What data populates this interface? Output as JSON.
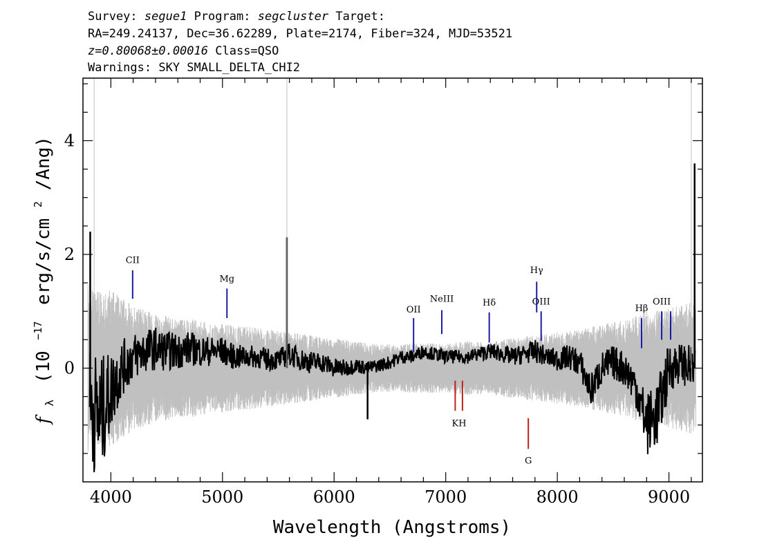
{
  "header": {
    "survey_label": "Survey:",
    "survey": "segue1",
    "program_label": "Program:",
    "program": "segcluster",
    "target_label": "Target:",
    "coords": "RA=249.24137, Dec=36.62289, Plate=2174, Fiber=324, MJD=53521",
    "redshift": "z=0.80068±0.00016",
    "class": "Class=QSO",
    "warnings": "Warnings: SKY SMALL_DELTA_CHI2"
  },
  "chart_data": {
    "type": "line",
    "title": "",
    "xlabel": "Wavelength (Angstroms)",
    "ylabel_main": "f",
    "ylabel_sub": "λ",
    "ylabel_unit_a": "(10",
    "ylabel_exp1": "−17",
    "ylabel_unit_b": "erg/s/cm",
    "ylabel_exp2": "2",
    "ylabel_unit_c": "/Ang)",
    "xlim": [
      3750,
      9300
    ],
    "ylim": [
      -2.0,
      5.1
    ],
    "xticks": [
      4000,
      5000,
      6000,
      7000,
      8000,
      9000
    ],
    "xtick_labels": [
      "4000",
      "5000",
      "6000",
      "7000",
      "8000",
      "9000"
    ],
    "yticks": [
      0,
      2,
      4
    ],
    "ytick_labels": [
      "0",
      "2",
      "4"
    ],
    "grid": false,
    "series": [
      {
        "role": "flux",
        "color": "#000000",
        "x": [
          3800,
          3900,
          4000,
          4100,
          4200,
          4300,
          4400,
          4500,
          4600,
          4700,
          4800,
          4900,
          5000,
          5100,
          5200,
          5300,
          5400,
          5500,
          5600,
          5700,
          5800,
          5900,
          6000,
          6100,
          6200,
          6300,
          6400,
          6500,
          6600,
          6700,
          6800,
          6900,
          7000,
          7100,
          7200,
          7300,
          7400,
          7500,
          7600,
          7700,
          7800,
          7900,
          8000,
          8100,
          8200,
          8300,
          8400,
          8500,
          8600,
          8700,
          8800,
          8900,
          9000,
          9100,
          9200
        ],
        "y": [
          -0.6,
          -0.9,
          -0.4,
          0.0,
          0.2,
          0.3,
          0.35,
          0.3,
          0.3,
          0.35,
          0.3,
          0.3,
          0.3,
          0.2,
          0.2,
          0.2,
          0.15,
          0.15,
          0.25,
          0.15,
          0.1,
          0.1,
          0.0,
          0.0,
          0.05,
          0.0,
          0.05,
          0.1,
          0.2,
          0.2,
          0.3,
          0.25,
          0.2,
          0.2,
          0.2,
          0.25,
          0.3,
          0.25,
          0.2,
          0.25,
          0.3,
          0.2,
          0.15,
          0.2,
          0.1,
          -0.4,
          0.0,
          0.1,
          0.0,
          -0.3,
          -1.0,
          -0.8,
          0.0,
          0.1,
          0.0
        ],
        "noise": [
          1.1,
          1.1,
          0.7,
          0.5,
          0.42,
          0.4,
          0.38,
          0.35,
          0.32,
          0.3,
          0.28,
          0.26,
          0.25,
          0.22,
          0.2,
          0.2,
          0.2,
          0.18,
          0.2,
          0.2,
          0.2,
          0.18,
          0.18,
          0.15,
          0.13,
          0.12,
          0.12,
          0.12,
          0.12,
          0.12,
          0.12,
          0.12,
          0.12,
          0.12,
          0.12,
          0.13,
          0.14,
          0.15,
          0.16,
          0.18,
          0.2,
          0.18,
          0.2,
          0.22,
          0.25,
          0.3,
          0.3,
          0.3,
          0.32,
          0.35,
          0.55,
          0.6,
          0.45,
          0.35,
          0.4
        ]
      },
      {
        "role": "error",
        "color": "#c0c0c0",
        "x": [
          3800,
          4000,
          4200,
          4400,
          4600,
          4800,
          5000,
          5200,
          5400,
          5600,
          5800,
          6000,
          6200,
          6400,
          6600,
          6800,
          7000,
          7200,
          7400,
          7600,
          7800,
          8000,
          8200,
          8400,
          8600,
          8800,
          9000,
          9200
        ],
        "y": [
          1.4,
          1.3,
          1.05,
          0.9,
          0.85,
          0.8,
          0.75,
          0.7,
          0.65,
          0.6,
          0.55,
          0.5,
          0.45,
          0.4,
          0.4,
          0.42,
          0.42,
          0.45,
          0.45,
          0.5,
          0.55,
          0.6,
          0.65,
          0.75,
          0.8,
          0.95,
          1.0,
          1.1
        ]
      }
    ],
    "spikes": [
      {
        "x": 3815,
        "y": 2.4,
        "color": "#000000"
      },
      {
        "x": 5577,
        "y": 2.3,
        "color": "#000000"
      },
      {
        "x": 9230,
        "y": 3.6,
        "color": "#000000"
      },
      {
        "x": 6300,
        "y": -0.9,
        "color": "#000000"
      },
      {
        "x": 3850,
        "y": 5.1,
        "color": "#c0c0c0"
      },
      {
        "x": 5577,
        "y": 5.1,
        "color": "#c0c0c0"
      },
      {
        "x": 9200,
        "y": 5.1,
        "color": "#c0c0c0"
      }
    ],
    "emission_lines": [
      {
        "label": "CII",
        "x": 4195,
        "y0": 1.22,
        "y1": 1.72,
        "label_y": 1.85
      },
      {
        "label": "Mg",
        "x": 5040,
        "y0": 0.88,
        "y1": 1.4,
        "label_y": 1.52
      },
      {
        "label": "OII",
        "x": 6712,
        "y0": 0.28,
        "y1": 0.88,
        "label_y": 0.98
      },
      {
        "label": "NeIII",
        "x": 6965,
        "y0": 0.6,
        "y1": 1.02,
        "label_y": 1.17
      },
      {
        "label": "Hδ",
        "x": 7390,
        "y0": 0.45,
        "y1": 0.98,
        "label_y": 1.1
      },
      {
        "label": "Hγ",
        "x": 7815,
        "y0": 0.98,
        "y1": 1.52,
        "label_y": 1.67
      },
      {
        "label": "OIII",
        "x": 7855,
        "y0": 0.48,
        "y1": 1.0,
        "label_y": 1.12
      },
      {
        "label": "Hβ",
        "x": 8755,
        "y0": 0.35,
        "y1": 0.88,
        "label_y": 1.0
      },
      {
        "label": "OIII",
        "x": 8935,
        "y0": 0.5,
        "y1": 1.0,
        "label_y": 1.12
      },
      {
        "label": "",
        "x": 9015,
        "y0": 0.5,
        "y1": 1.0,
        "label_y": 1.12
      }
    ],
    "absorption_lines": [
      {
        "label": "K",
        "x": 7085,
        "y0": -0.75,
        "y1": -0.22,
        "label_y": -1.02
      },
      {
        "label": "H",
        "x": 7150,
        "y0": -0.75,
        "y1": -0.22,
        "label_y": -1.02
      },
      {
        "label": "G",
        "x": 7740,
        "y0": -1.42,
        "y1": -0.88,
        "label_y": -1.68
      }
    ],
    "colors": {
      "flux": "#000000",
      "error": "#c0c0c0",
      "emission": "#1a1aa6",
      "absorption": "#c0201a"
    }
  }
}
